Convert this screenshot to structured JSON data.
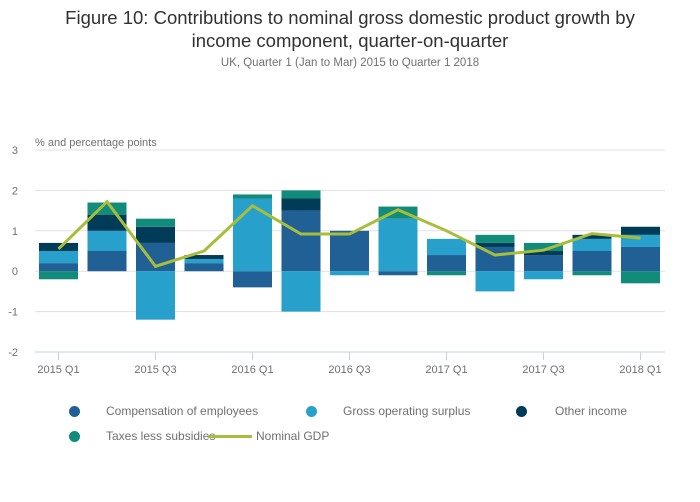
{
  "header": {
    "title_line1": "Figure 10: Contributions to nominal gross domestic product growth by",
    "title_line2": "income component, quarter-on-quarter",
    "subtitle": "UK, Quarter 1 (Jan to Mar) 2015 to Quarter 1 2018"
  },
  "chart_data": {
    "type": "bar",
    "stacked": true,
    "title": "Figure 10: Contributions to nominal gross domestic product growth by income component, quarter-on-quarter",
    "subtitle": "UK, Quarter 1 (Jan to Mar) 2015 to Quarter 1 2018",
    "ylabel": "% and percentage points",
    "xlabel": "",
    "ylim": [
      -2,
      3
    ],
    "yticks": [
      3,
      2,
      1,
      0,
      -1,
      -2
    ],
    "grid": true,
    "categories": [
      "2015 Q1",
      "2015 Q2",
      "2015 Q3",
      "2015 Q4",
      "2016 Q1",
      "2016 Q2",
      "2016 Q3",
      "2016 Q4",
      "2017 Q1",
      "2017 Q2",
      "2017 Q3",
      "2017 Q4",
      "2018 Q1"
    ],
    "xtick_labels": [
      "2015 Q1",
      "2015 Q3",
      "2016 Q1",
      "2016 Q3",
      "2017 Q1",
      "2017 Q3",
      "2018 Q1"
    ],
    "series": [
      {
        "name": "Compensation of employees",
        "color": "#206095",
        "kind": "bar",
        "values": [
          0.2,
          0.5,
          0.7,
          0.2,
          -0.4,
          1.5,
          1.0,
          -0.1,
          0.4,
          0.6,
          0.4,
          0.5,
          0.6
        ]
      },
      {
        "name": "Gross operating surplus",
        "color": "#27a0cc",
        "kind": "bar",
        "values": [
          0.3,
          0.5,
          -1.2,
          0.1,
          1.8,
          -1.0,
          -0.1,
          1.3,
          0.4,
          -0.5,
          -0.2,
          0.3,
          0.3
        ]
      },
      {
        "name": "Other income",
        "color": "#003c57",
        "kind": "bar",
        "values": [
          0.2,
          0.4,
          0.4,
          0.1,
          0.0,
          0.3,
          0.0,
          0.0,
          0.0,
          0.1,
          0.1,
          0.1,
          0.2
        ]
      },
      {
        "name": "Taxes less subsidies",
        "color": "#118c7b",
        "kind": "bar",
        "values": [
          -0.2,
          0.3,
          0.2,
          0.0,
          0.1,
          0.2,
          0.0,
          0.3,
          -0.1,
          0.2,
          0.2,
          -0.1,
          -0.3
        ]
      },
      {
        "name": "Nominal GDP",
        "color": "#a8bd3a",
        "kind": "line",
        "values": [
          0.55,
          1.72,
          0.12,
          0.5,
          1.62,
          0.92,
          0.92,
          1.52,
          1.0,
          0.4,
          0.52,
          0.93,
          0.82
        ]
      }
    ],
    "legend_position": "bottom"
  },
  "legend": {
    "items": [
      {
        "label": "Compensation of employees",
        "color": "#206095",
        "type": "dot"
      },
      {
        "label": "Gross operating surplus",
        "color": "#27a0cc",
        "type": "dot"
      },
      {
        "label": "Other income",
        "color": "#003c57",
        "type": "dot"
      },
      {
        "label": "Taxes less subsidies",
        "color": "#118c7b",
        "type": "dot"
      },
      {
        "label": "Nominal GDP",
        "color": "#a8bd3a",
        "type": "line"
      }
    ]
  }
}
